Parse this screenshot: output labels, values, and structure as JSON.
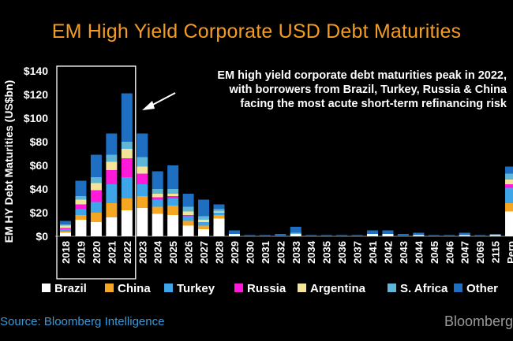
{
  "title": "EM High Yield Corporate USD Debt Maturities",
  "source": "Source: Bloomberg Intelligence",
  "brand": "Bloomberg",
  "annotation": [
    "EM high yield corporate debt maturities peak in 2022,",
    "with borrowers from Brazil, Turkey, Russia & China",
    "facing the most acute short-term refinancing risk"
  ],
  "colors": {
    "Brazil": "#ffffff",
    "China": "#f5a623",
    "Turkey": "#3ea6e8",
    "Russia": "#ff1ad9",
    "Argentina": "#f4e49a",
    "S. Africa": "#5fb6d6",
    "Other": "#1e6fc2"
  },
  "chart_data": {
    "type": "bar",
    "stacked": true,
    "ylabel": "EM HY Debt Maturities (US$bn)",
    "ylim": [
      0,
      140
    ],
    "yticks": [
      "$0",
      "$20",
      "$40",
      "$60",
      "$80",
      "$100",
      "$120",
      "$140"
    ],
    "categories": [
      "2018",
      "2019",
      "2020",
      "2021",
      "2022",
      "2023",
      "2024",
      "2025",
      "2026",
      "2027",
      "2028",
      "2029",
      "2030",
      "2031",
      "2032",
      "2033",
      "2034",
      "2035",
      "2036",
      "2037",
      "2041",
      "2042",
      "2043",
      "2044",
      "2045",
      "2046",
      "2047",
      "2069",
      "2115",
      "Perp"
    ],
    "highlight": [
      "2018",
      "2022"
    ],
    "series": [
      {
        "name": "Brazil",
        "values": [
          3,
          14,
          12,
          16,
          22,
          24,
          19,
          18,
          9,
          6,
          15,
          2,
          0,
          0,
          0,
          2,
          0,
          0,
          0,
          0,
          2,
          2,
          0,
          1,
          0,
          0,
          1,
          0,
          1,
          21
        ]
      },
      {
        "name": "China",
        "values": [
          1,
          4,
          8,
          12,
          10,
          10,
          6,
          8,
          4,
          3,
          3,
          0,
          0,
          0,
          0,
          0,
          0,
          0,
          0,
          0,
          0,
          0,
          0,
          0,
          0,
          0,
          0,
          0,
          0,
          7
        ]
      },
      {
        "name": "Turkey",
        "values": [
          2,
          5,
          9,
          16,
          18,
          10,
          6,
          6,
          4,
          3,
          2,
          0,
          0,
          0,
          0,
          0,
          0,
          0,
          0,
          0,
          0,
          0,
          0,
          0,
          0,
          0,
          0,
          0,
          0,
          13
        ]
      },
      {
        "name": "Russia",
        "values": [
          1,
          4,
          10,
          12,
          16,
          9,
          2,
          2,
          1,
          0,
          0,
          0,
          0,
          0,
          0,
          0,
          0,
          0,
          0,
          0,
          0,
          0,
          0,
          0,
          0,
          0,
          0,
          0,
          0,
          3
        ]
      },
      {
        "name": "Argentina",
        "values": [
          2,
          4,
          6,
          7,
          8,
          6,
          3,
          2,
          3,
          2,
          1,
          0,
          0,
          0,
          0,
          0,
          0,
          0,
          0,
          0,
          0,
          0,
          0,
          0,
          0,
          0,
          0,
          0,
          0,
          4
        ]
      },
      {
        "name": "S. Africa",
        "values": [
          1,
          3,
          5,
          6,
          6,
          8,
          4,
          4,
          4,
          3,
          2,
          0,
          0,
          0,
          0,
          1,
          0,
          0,
          0,
          0,
          0,
          0,
          0,
          0,
          0,
          0,
          0,
          0,
          0,
          5
        ]
      },
      {
        "name": "Other",
        "values": [
          3,
          13,
          19,
          18,
          41,
          20,
          15,
          20,
          11,
          14,
          4,
          3,
          1,
          1,
          2,
          5,
          1,
          1,
          1,
          1,
          3,
          3,
          2,
          2,
          1,
          1,
          2,
          1,
          1,
          6
        ]
      }
    ]
  }
}
